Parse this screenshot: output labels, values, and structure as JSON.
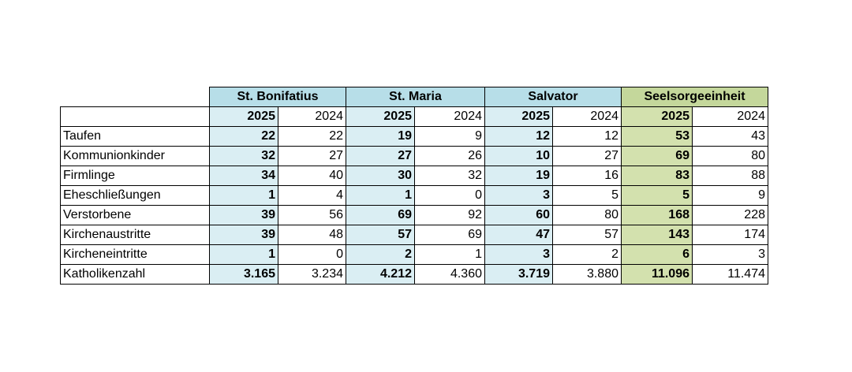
{
  "table": {
    "groups": [
      "St. Bonifatius",
      "St. Maria",
      "Salvator",
      "Seelsorgeeinheit"
    ],
    "years": [
      "2025",
      "2024",
      "2025",
      "2024",
      "2025",
      "2024",
      "2025",
      "2024"
    ],
    "rows": [
      {
        "label": "Taufen",
        "values": [
          "22",
          "22",
          "19",
          "9",
          "12",
          "12",
          "53",
          "43"
        ]
      },
      {
        "label": "Kommunionkinder",
        "values": [
          "32",
          "27",
          "27",
          "26",
          "10",
          "27",
          "69",
          "80"
        ]
      },
      {
        "label": "Firmlinge",
        "values": [
          "34",
          "40",
          "30",
          "32",
          "19",
          "16",
          "83",
          "88"
        ]
      },
      {
        "label": "Eheschließungen",
        "values": [
          "1",
          "4",
          "1",
          "0",
          "3",
          "5",
          "5",
          "9"
        ]
      },
      {
        "label": "Verstorbene",
        "values": [
          "39",
          "56",
          "69",
          "92",
          "60",
          "80",
          "168",
          "228"
        ]
      },
      {
        "label": "Kirchenaustritte",
        "values": [
          "39",
          "48",
          "57",
          "69",
          "47",
          "57",
          "143",
          "174"
        ]
      },
      {
        "label": "Kircheneintritte",
        "values": [
          "1",
          "0",
          "2",
          "1",
          "3",
          "2",
          "6",
          "3"
        ]
      },
      {
        "label": "Katholikenzahl",
        "values": [
          "3.165",
          "3.234",
          "4.212",
          "4.360",
          "3.719",
          "3.880",
          "11.096",
          "11.474"
        ]
      }
    ]
  }
}
